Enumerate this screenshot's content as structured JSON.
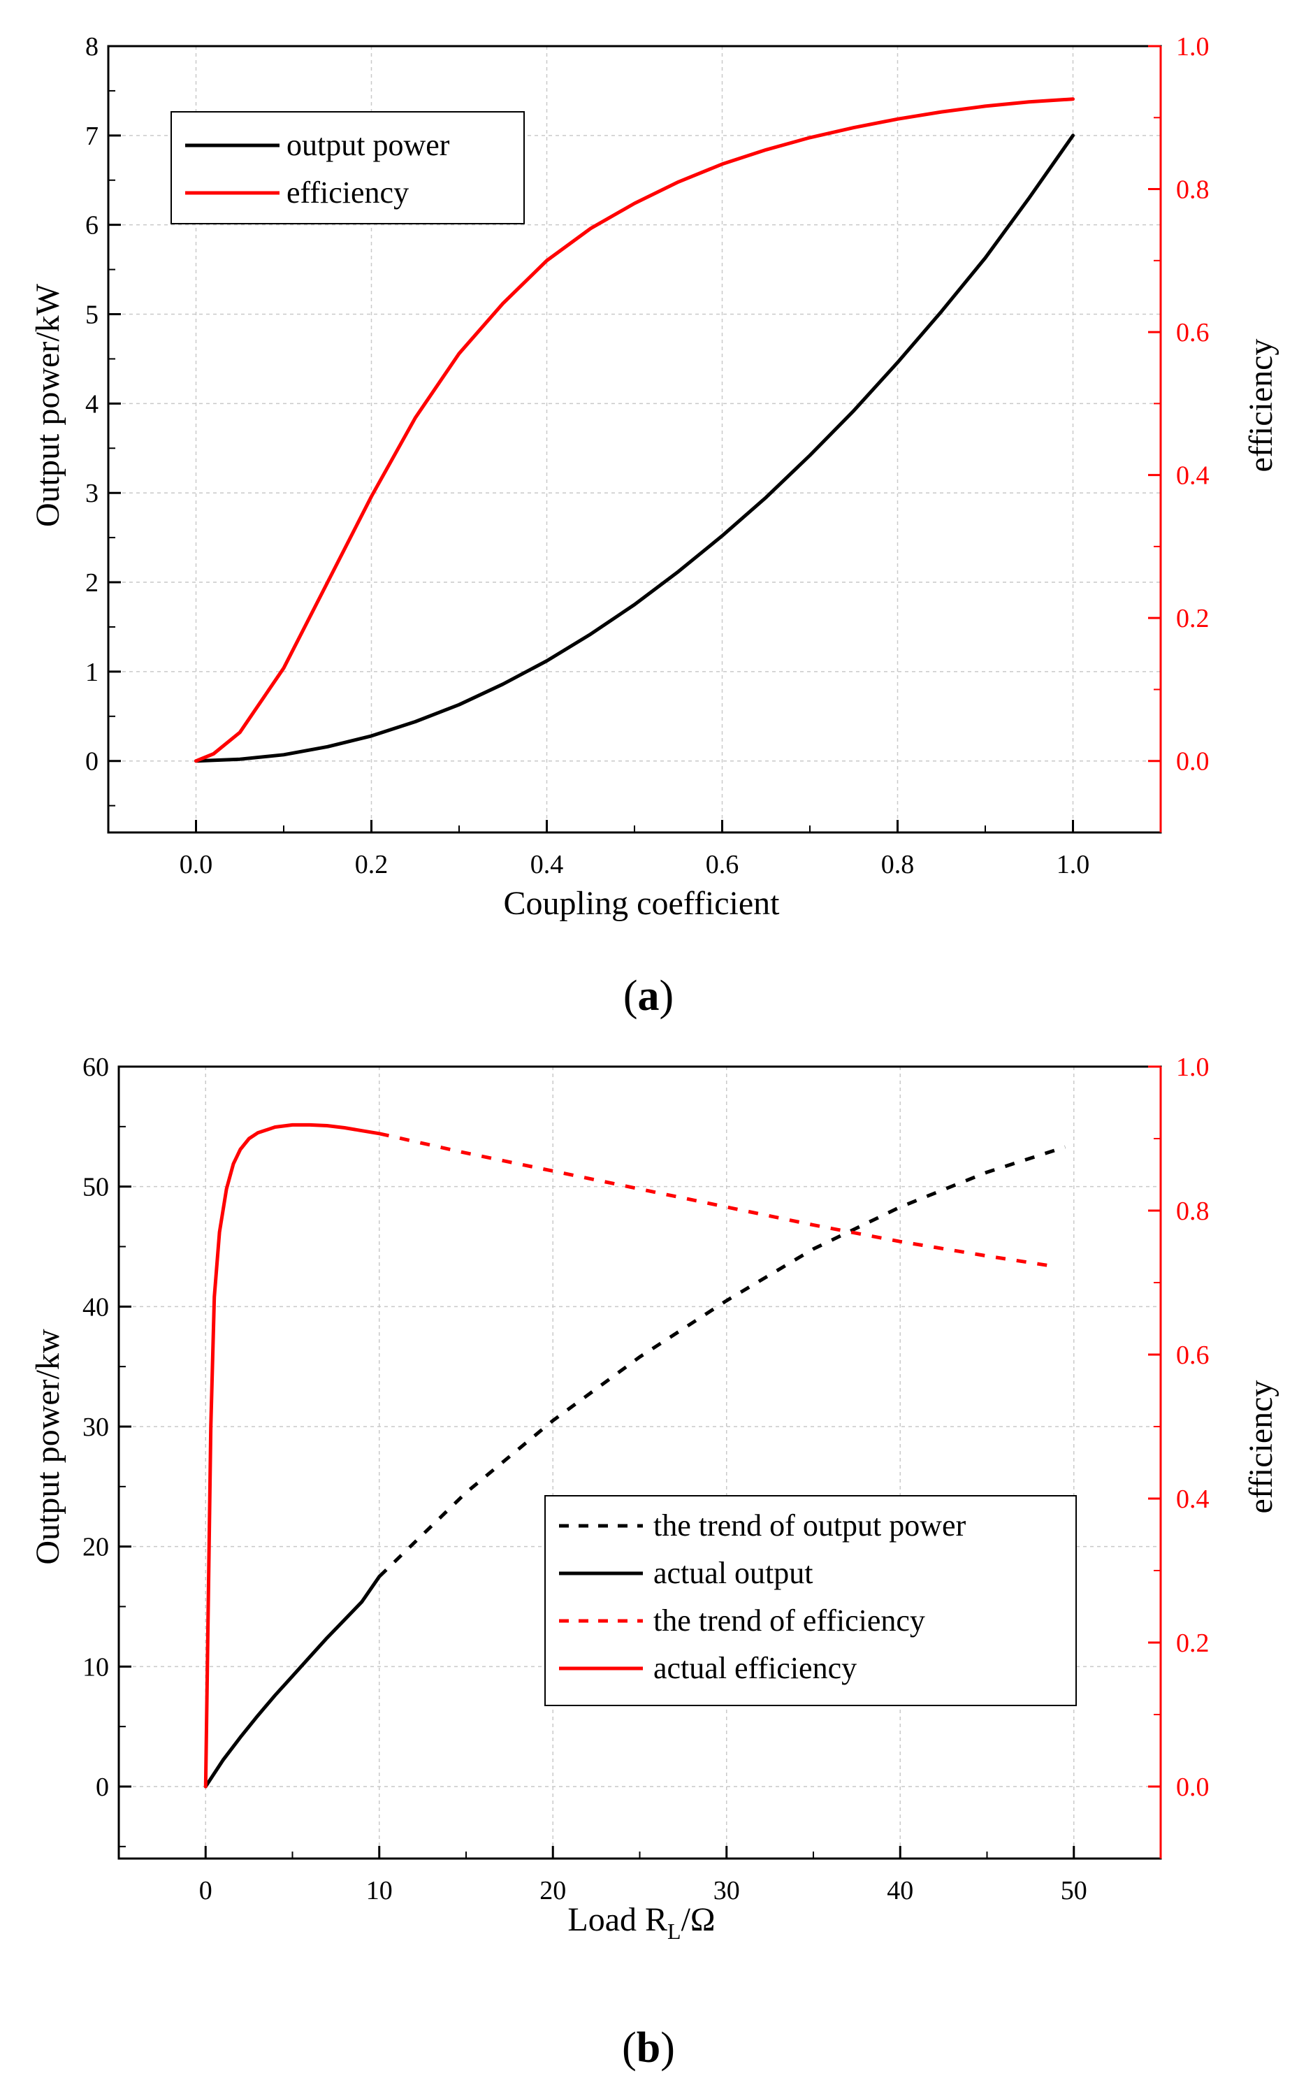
{
  "figure": {
    "caption_a": {
      "open": "(",
      "letter": "a",
      "close": ")"
    },
    "caption_b": {
      "open": "(",
      "letter": "b",
      "close": ")"
    }
  },
  "colors": {
    "power": "#000000",
    "efficiency": "#ff0000",
    "grid": "#c9c9c9"
  },
  "chart_data": [
    {
      "id": "a",
      "type": "line",
      "xlabel": "Coupling coefficient",
      "ylabel": "Output power/kW",
      "y2label": "efficiency",
      "xlim": [
        -0.1,
        1.1
      ],
      "ylim": [
        -0.8,
        8
      ],
      "y2lim": [
        -0.1,
        1.0
      ],
      "xticks": [
        0.0,
        0.2,
        0.4,
        0.6,
        0.8,
        1.0
      ],
      "xtick_labels": [
        "0.0",
        "0.2",
        "0.4",
        "0.6",
        "0.8",
        "1.0"
      ],
      "yticks": [
        0,
        1,
        2,
        3,
        4,
        5,
        6,
        7,
        8
      ],
      "ytick_labels": [
        "0",
        "1",
        "2",
        "3",
        "4",
        "5",
        "6",
        "7",
        "8"
      ],
      "y2ticks": [
        0.0,
        0.2,
        0.4,
        0.6,
        0.8,
        1.0
      ],
      "y2tick_labels": [
        "0.0",
        "0.2",
        "0.4",
        "0.6",
        "0.8",
        "1.0"
      ],
      "grid": true,
      "legend_position": "top-left",
      "series": [
        {
          "name": "output power",
          "axis": "left",
          "color": "#000000",
          "dash": "solid",
          "x": [
            0.0,
            0.05,
            0.1,
            0.15,
            0.2,
            0.25,
            0.3,
            0.35,
            0.4,
            0.45,
            0.5,
            0.55,
            0.6,
            0.65,
            0.7,
            0.75,
            0.8,
            0.85,
            0.9,
            0.95,
            1.0
          ],
          "y": [
            0.0,
            0.02,
            0.07,
            0.16,
            0.28,
            0.44,
            0.63,
            0.86,
            1.12,
            1.42,
            1.75,
            2.12,
            2.52,
            2.95,
            3.42,
            3.92,
            4.46,
            5.03,
            5.63,
            6.3,
            7.0
          ]
        },
        {
          "name": "efficiency",
          "axis": "right",
          "color": "#ff0000",
          "dash": "solid",
          "x": [
            0.0,
            0.02,
            0.05,
            0.1,
            0.15,
            0.2,
            0.25,
            0.3,
            0.35,
            0.4,
            0.45,
            0.5,
            0.55,
            0.6,
            0.65,
            0.7,
            0.75,
            0.8,
            0.85,
            0.9,
            0.95,
            1.0
          ],
          "y": [
            0.0,
            0.01,
            0.04,
            0.13,
            0.25,
            0.37,
            0.48,
            0.57,
            0.64,
            0.7,
            0.745,
            0.78,
            0.81,
            0.835,
            0.855,
            0.872,
            0.886,
            0.898,
            0.908,
            0.916,
            0.922,
            0.926
          ]
        }
      ]
    },
    {
      "id": "b",
      "type": "line",
      "xlabel_main": "Load R",
      "xlabel_sub": "L",
      "xlabel_tail": "/Ω",
      "ylabel": "Output power/kw",
      "y2label": "efficiency",
      "xlim": [
        -5,
        55
      ],
      "ylim": [
        -6,
        60
      ],
      "y2lim": [
        -0.1,
        1.0
      ],
      "xticks": [
        0,
        10,
        20,
        30,
        40,
        50
      ],
      "xtick_labels": [
        "0",
        "10",
        "20",
        "30",
        "40",
        "50"
      ],
      "yticks": [
        0,
        10,
        20,
        30,
        40,
        50,
        60
      ],
      "ytick_labels": [
        "0",
        "10",
        "20",
        "30",
        "40",
        "50",
        "60"
      ],
      "y2ticks": [
        0.0,
        0.2,
        0.4,
        0.6,
        0.8,
        1.0
      ],
      "y2tick_labels": [
        "0.0",
        "0.2",
        "0.4",
        "0.6",
        "0.8",
        "1.0"
      ],
      "grid": true,
      "legend_position": "bottom-right",
      "series": [
        {
          "name": "the trend of output power",
          "axis": "left",
          "color": "#000000",
          "dash": "dashed",
          "x": [
            10,
            15,
            20,
            25,
            30,
            35,
            40,
            45,
            49.5
          ],
          "y": [
            17.5,
            24.5,
            30.5,
            35.8,
            40.5,
            44.8,
            48.3,
            51.2,
            53.3
          ]
        },
        {
          "name": "actual output",
          "axis": "left",
          "color": "#000000",
          "dash": "solid",
          "x": [
            0,
            1,
            2,
            3,
            4,
            5,
            6,
            7,
            8,
            9,
            10
          ],
          "y": [
            0,
            2.2,
            4.1,
            5.9,
            7.6,
            9.2,
            10.8,
            12.4,
            13.9,
            15.4,
            17.5
          ]
        },
        {
          "name": "the trend of efficiency",
          "axis": "right",
          "color": "#ff0000",
          "dash": "dashed",
          "x": [
            10,
            15,
            20,
            25,
            30,
            35,
            40,
            45,
            49
          ],
          "y": [
            0.907,
            0.88,
            0.855,
            0.83,
            0.805,
            0.78,
            0.757,
            0.737,
            0.722
          ]
        },
        {
          "name": "actual efficiency",
          "axis": "right",
          "color": "#ff0000",
          "dash": "solid",
          "x": [
            0,
            0.3,
            0.5,
            0.8,
            1.2,
            1.6,
            2,
            2.5,
            3,
            4,
            5,
            6,
            7,
            8,
            9,
            10
          ],
          "y": [
            0,
            0.5,
            0.68,
            0.77,
            0.83,
            0.865,
            0.885,
            0.9,
            0.908,
            0.916,
            0.919,
            0.919,
            0.918,
            0.915,
            0.911,
            0.907
          ]
        }
      ]
    }
  ]
}
